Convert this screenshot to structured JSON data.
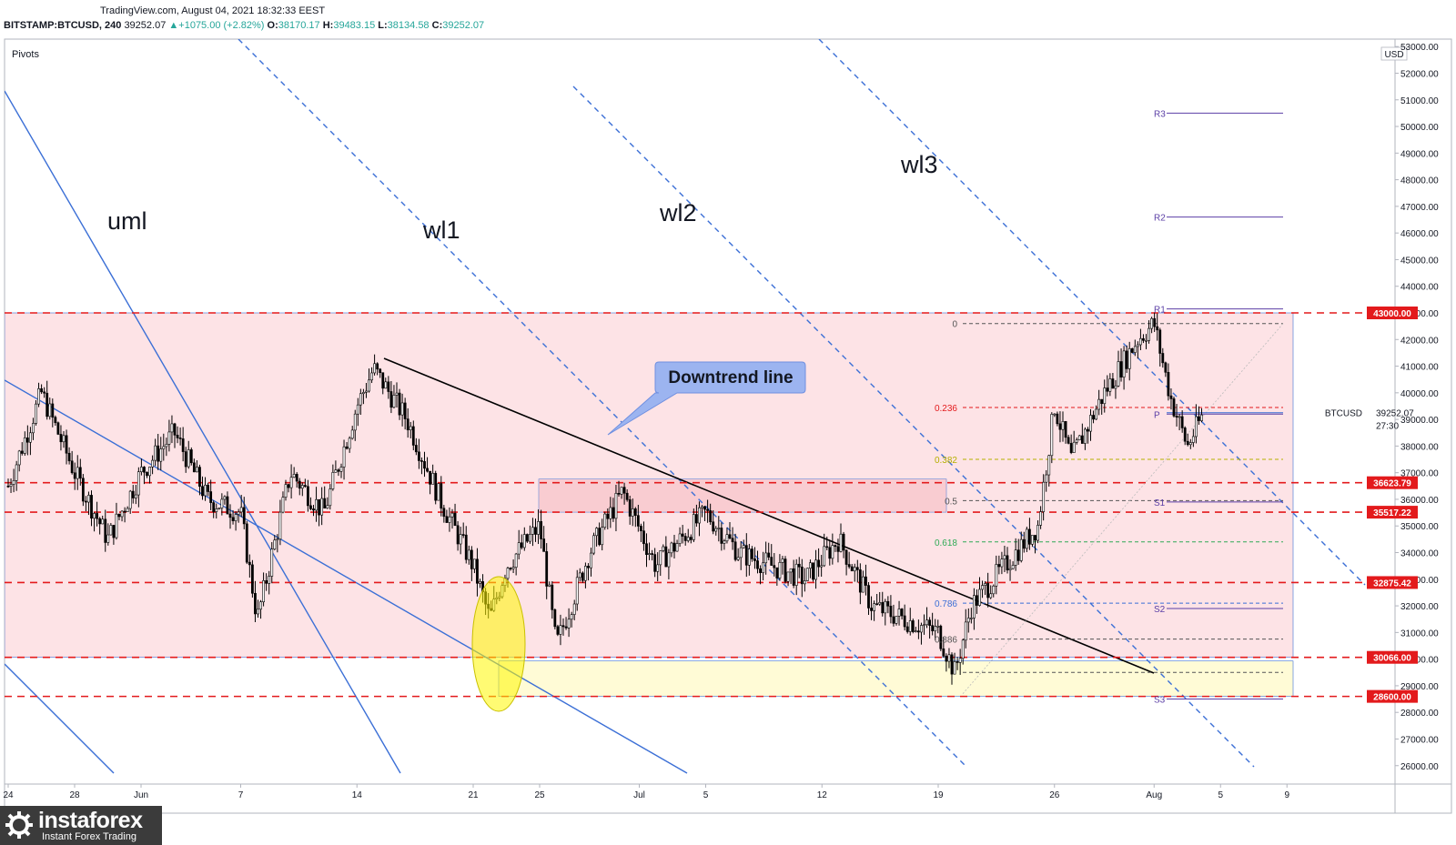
{
  "header": {
    "source": "TradingView.com, August 04, 2021 18:32:33 EEST",
    "symbol": "BITSTAMP:BTCUSD, 240",
    "last": "39252.07",
    "change": "+1075.00 (+2.82%)",
    "open_k": "O:",
    "open": "38170.17",
    "high_k": "H:",
    "high": "39483.15",
    "low_k": "L:",
    "low": "38134.58",
    "close_k": "C:",
    "close": "39252.07"
  },
  "indicator_label": "Pivots",
  "currency": "USD",
  "annotations": {
    "uml": "uml",
    "wl1": "wl1",
    "wl2": "wl2",
    "wl3": "wl3",
    "callout": "Downtrend line"
  },
  "pivots": [
    "R3",
    "R2",
    "R1",
    "P",
    "S1",
    "S2",
    "S3"
  ],
  "fib_levels": [
    "0",
    "0.236",
    "0.382",
    "0.5",
    "0.618",
    "0.786",
    "0.886"
  ],
  "price_tag": {
    "symbol": "BTCUSD",
    "price": "39252.07",
    "timer": "27:30"
  },
  "level_tags": [
    "43000.00",
    "36623.79",
    "35517.22",
    "32875.42",
    "30066.00",
    "28600.00"
  ],
  "logo": {
    "name": "instaforex",
    "tagline": "Instant Forex Trading"
  },
  "colors": {
    "zone": "#fde3e6",
    "level_line": "#e31a1c",
    "channel": "#3b6fd6",
    "bull_candle": "#ffffff",
    "bear_candle": "#000000",
    "highlight": "#fff700"
  },
  "chart_data": {
    "type": "candlestick",
    "y_axis_ticks": [
      53000,
      52000,
      51000,
      50000,
      49000,
      48000,
      47000,
      46000,
      45000,
      44000,
      43000,
      42000,
      41000,
      40000,
      39000,
      38000,
      37000,
      36000,
      35000,
      34000,
      33000,
      32000,
      31000,
      30000,
      29000,
      28000,
      27000,
      26000
    ],
    "ylim": [
      25800,
      53400
    ],
    "x_axis_ticks": [
      "24",
      "28",
      "Jun",
      "7",
      "14",
      "21",
      "25",
      "Jul",
      "5",
      "12",
      "19",
      "26",
      "Aug",
      "5",
      "9"
    ],
    "horizontal_levels": [
      43000.0,
      36623.79,
      35517.22,
      32875.42,
      30066.0,
      28600.0
    ],
    "pivot_values": {
      "R3": 50500,
      "R2": 46600,
      "R1": 43150,
      "P": 39200,
      "S1": 35900,
      "S2": 31900,
      "S3": 28500
    },
    "last_price": 39252.07,
    "ohlc_last": {
      "open": 38170.17,
      "high": 39483.15,
      "low": 38134.58,
      "close": 39252.07
    },
    "fib_retracement": {
      "0": 42600,
      "0.236": 39450,
      "0.382": 37500,
      "0.5": 35950,
      "0.618": 34400,
      "0.786": 32100,
      "0.886": 30750
    },
    "approx_path": [
      [
        "May 24",
        36500
      ],
      [
        "May 26",
        40000
      ],
      [
        "May 28",
        37000
      ],
      [
        "May 30",
        34500
      ],
      [
        "Jun 1",
        37000
      ],
      [
        "Jun 3",
        38500
      ],
      [
        "Jun 5",
        36000
      ],
      [
        "Jun 7",
        35500
      ],
      [
        "Jun 8",
        31500
      ],
      [
        "Jun 10",
        37000
      ],
      [
        "Jun 12",
        35500
      ],
      [
        "Jun 14",
        39500
      ],
      [
        "Jun 15",
        40900
      ],
      [
        "Jun 17",
        39000
      ],
      [
        "Jun 19",
        36000
      ],
      [
        "Jun 21",
        33500
      ],
      [
        "Jun 22",
        31500
      ],
      [
        "Jun 23",
        33500
      ],
      [
        "Jun 25",
        35000
      ],
      [
        "Jun 26",
        30500
      ],
      [
        "Jun 28",
        34000
      ],
      [
        "Jun 30",
        36300
      ],
      [
        "Jul 2",
        33500
      ],
      [
        "Jul 5",
        35500
      ],
      [
        "Jul 7",
        34000
      ],
      [
        "Jul 9",
        33500
      ],
      [
        "Jul 11",
        33000
      ],
      [
        "Jul 13",
        34500
      ],
      [
        "Jul 15",
        32000
      ],
      [
        "Jul 17",
        31500
      ],
      [
        "Jul 19",
        31000
      ],
      [
        "Jul 20",
        29500
      ],
      [
        "Jul 21",
        32000
      ],
      [
        "Jul 23",
        33500
      ],
      [
        "Jul 25",
        35000
      ],
      [
        "Jul 26",
        39500
      ],
      [
        "Jul 27",
        37500
      ],
      [
        "Jul 29",
        40000
      ],
      [
        "Jul 31",
        42000
      ],
      [
        "Aug 1",
        42600
      ],
      [
        "Aug 2",
        39800
      ],
      [
        "Aug 3",
        38000
      ],
      [
        "Aug 4",
        39252
      ]
    ]
  }
}
